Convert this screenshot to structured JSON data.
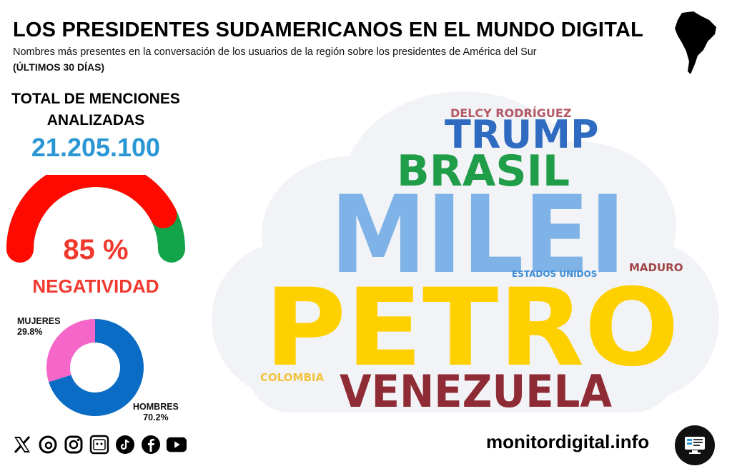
{
  "header": {
    "title": "LOS PRESIDENTES SUDAMERICANOS EN EL MUNDO DIGITAL",
    "subtitle": "Nombres más presentes en la conversación de los usuarios de la región sobre los presidentes de América del Sur",
    "period": "(ÚLTIMOS 30 DÍAS)",
    "map_icon": "south-america-map-icon"
  },
  "total": {
    "label": "TOTAL DE MENCIONES ANALIZADAS",
    "value": "21.205.100",
    "color": "#2a96d4"
  },
  "negativity": {
    "value_text": "85 %",
    "fraction": 0.85,
    "label": "NEGATIVIDAD",
    "negative_color": "#ff0a00",
    "positive_color": "#13a34a"
  },
  "gender": {
    "women": {
      "label": "MUJERES",
      "pct_text": "29.8%",
      "value": 29.8,
      "color": "#f566c9"
    },
    "men": {
      "label": "HOMBRES",
      "pct_text": "70.2%",
      "value": 70.2,
      "color": "#0a6cc4"
    }
  },
  "social_icons": [
    "x-icon",
    "threads-icon",
    "instagram-icon",
    "news-icon",
    "tiktok-icon",
    "facebook-icon",
    "youtube-icon"
  ],
  "footer": {
    "site": "monitordigital.info",
    "icon": "monitor-icon"
  },
  "wordcloud": {
    "words": [
      {
        "text": "DELCY RODRÍGUEZ",
        "color": "#b35a66"
      },
      {
        "text": "TRUMP",
        "color": "#2f6bc0"
      },
      {
        "text": "BRASIL",
        "color": "#1f9d49"
      },
      {
        "text": "MILEI",
        "color": "#7fb2e6"
      },
      {
        "text": "ESTADOS UNIDOS",
        "color": "#3e8ed6"
      },
      {
        "text": "MADURO",
        "color": "#a04646"
      },
      {
        "text": "PETRO",
        "color": "#ffd000"
      },
      {
        "text": "COLOMBIA",
        "color": "#f2c33a"
      },
      {
        "text": "VENEZUELA",
        "color": "#8f2b34"
      }
    ]
  }
}
